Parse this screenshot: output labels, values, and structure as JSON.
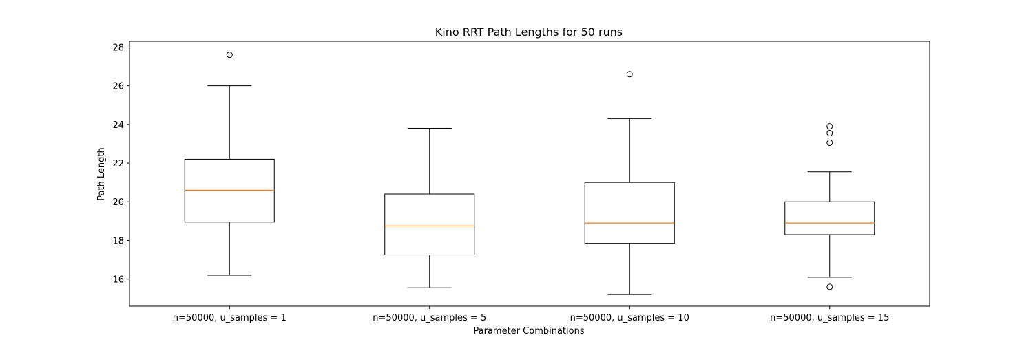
{
  "chart_data": {
    "type": "box",
    "title": "Kino RRT Path Lengths for 50 runs",
    "xlabel": "Parameter Combinations",
    "ylabel": "Path Length",
    "ylim": [
      14.6,
      28.3
    ],
    "yticks": [
      16,
      18,
      20,
      22,
      24,
      26,
      28
    ],
    "categories": [
      "n=50000, u_samples = 1",
      "n=50000, u_samples = 5",
      "n=50000, u_samples = 10",
      "n=50000, u_samples = 15"
    ],
    "boxes": [
      {
        "whisker_low": 16.2,
        "q1": 18.95,
        "median": 20.6,
        "q3": 22.2,
        "whisker_high": 26.0,
        "outliers": [
          27.6
        ]
      },
      {
        "whisker_low": 15.55,
        "q1": 17.25,
        "median": 18.75,
        "q3": 20.4,
        "whisker_high": 23.8,
        "outliers": []
      },
      {
        "whisker_low": 15.2,
        "q1": 17.85,
        "median": 18.9,
        "q3": 21.0,
        "whisker_high": 24.3,
        "outliers": [
          26.6
        ]
      },
      {
        "whisker_low": 16.1,
        "q1": 18.3,
        "median": 18.9,
        "q3": 20.0,
        "whisker_high": 21.55,
        "outliers": [
          23.9,
          23.55,
          23.05,
          15.6
        ]
      }
    ],
    "grid": false,
    "colors": {
      "box": "#000000",
      "median": "#ff7f0e",
      "outlier": "#000000"
    }
  }
}
